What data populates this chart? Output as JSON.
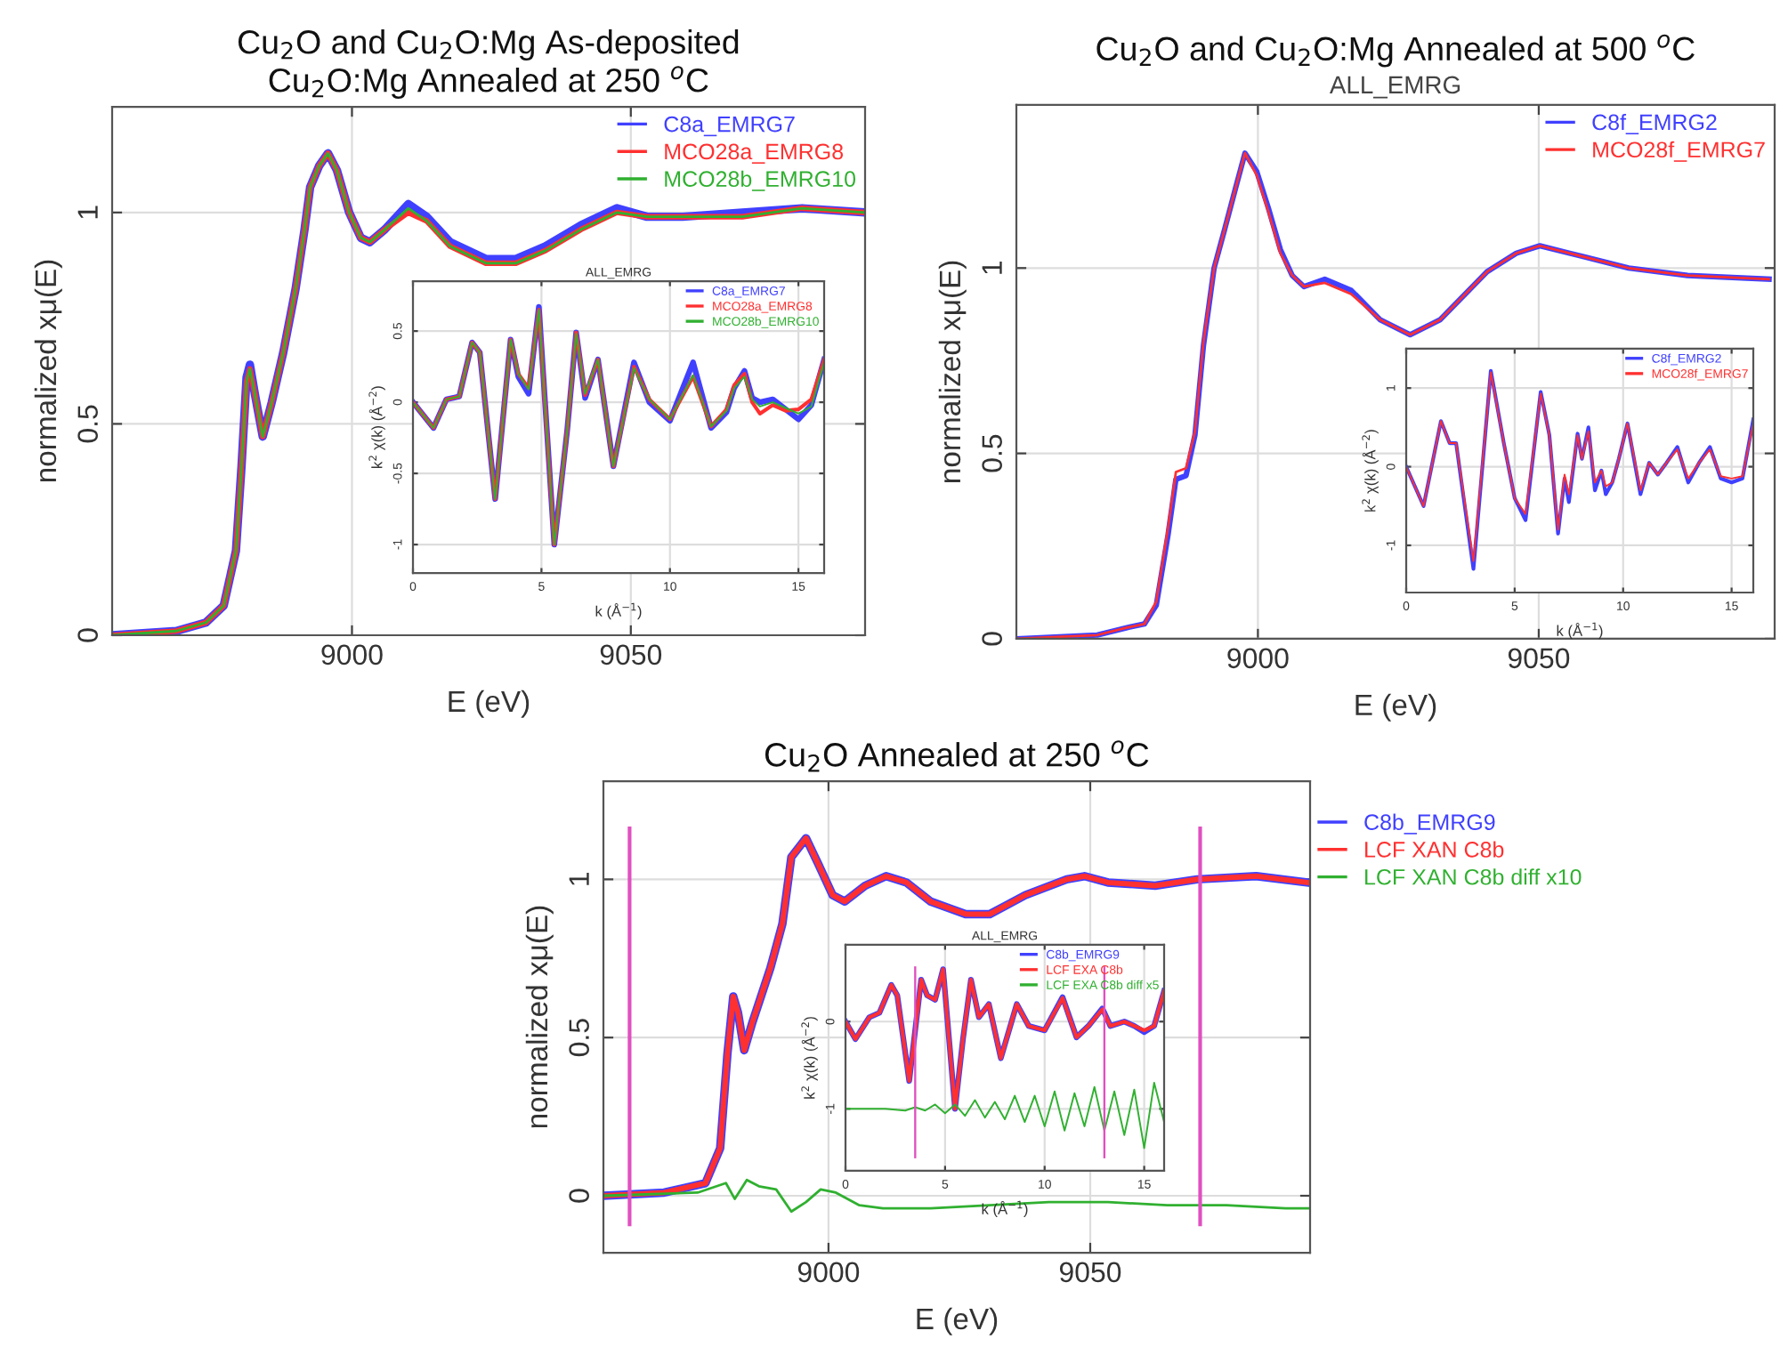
{
  "chart_data": [
    {
      "type": "line",
      "title": "Cu$_{2}$O and Cu$_{2}$O:Mg As-deposited\nCu$_{2}$O:Mg Annealed at 250 $^{o}$C",
      "xlabel": "E (eV)",
      "ylabel": "normalized xμ(E)",
      "xlim": [
        8957,
        9092
      ],
      "ylim": [
        0,
        1.25
      ],
      "xticks": [
        9000,
        9050
      ],
      "yticks": [
        0,
        0.5,
        1
      ],
      "grid": true,
      "legend": "top right",
      "x": [
        8957,
        8968.5,
        8973.8,
        8977,
        8979.2,
        8980.2,
        8981.1,
        8981.7,
        8982.6,
        8984,
        8985.6,
        8987.7,
        8989.9,
        8991.5,
        8992.5,
        8994.1,
        8995.7,
        8997.3,
        8999.5,
        9001.6,
        9003.2,
        9005.9,
        9010.1,
        9013.4,
        9017.6,
        9024,
        9029.4,
        9034.7,
        9041.1,
        9047.5,
        9052.9,
        9059.3,
        9070,
        9080.7,
        9092
      ],
      "series": [
        {
          "name": "C8a_EMRG7",
          "color": "#4040ff",
          "values": [
            0,
            0.01,
            0.03,
            0.07,
            0.2,
            0.4,
            0.61,
            0.64,
            0.57,
            0.47,
            0.55,
            0.67,
            0.82,
            0.96,
            1.06,
            1.11,
            1.14,
            1.1,
            1.0,
            0.94,
            0.93,
            0.96,
            1.02,
            0.99,
            0.93,
            0.89,
            0.89,
            0.92,
            0.97,
            1.01,
            0.99,
            0.99,
            1.0,
            1.01,
            1.0
          ]
        },
        {
          "name": "MCO28a_EMRG8",
          "color": "#ff3030",
          "values": [
            0,
            0.01,
            0.03,
            0.07,
            0.2,
            0.4,
            0.6,
            0.63,
            0.57,
            0.47,
            0.55,
            0.67,
            0.82,
            0.96,
            1.06,
            1.11,
            1.14,
            1.1,
            1.0,
            0.94,
            0.93,
            0.96,
            1.0,
            0.98,
            0.92,
            0.88,
            0.88,
            0.91,
            0.96,
            1.0,
            0.99,
            0.99,
            0.99,
            1.01,
            1.0
          ]
        },
        {
          "name": "MCO28b_EMRG10",
          "color": "#30b030",
          "values": [
            0,
            0.01,
            0.03,
            0.07,
            0.2,
            0.4,
            0.6,
            0.63,
            0.57,
            0.47,
            0.55,
            0.67,
            0.82,
            0.96,
            1.06,
            1.11,
            1.14,
            1.1,
            1.0,
            0.94,
            0.93,
            0.96,
            1.01,
            0.98,
            0.92,
            0.88,
            0.88,
            0.91,
            0.96,
            1.0,
            0.99,
            0.99,
            0.99,
            1.01,
            1.0
          ]
        }
      ]
    },
    {
      "type": "line",
      "title": "ALL_EMRG",
      "xlabel": "k (Å$^{−1}$)",
      "ylabel": "k$^{2}$ χ(k) (Å$^{−2}$)",
      "xlim": [
        0,
        16
      ],
      "ylim": [
        -1.2,
        0.85
      ],
      "xticks": [
        0,
        5,
        10,
        15
      ],
      "yticks": [
        -1,
        -0.5,
        0,
        0.5
      ],
      "grid": true,
      "legend": "top right",
      "x": [
        0,
        0.8,
        1.3,
        1.8,
        2.3,
        2.6,
        3.2,
        3.8,
        4.1,
        4.5,
        4.9,
        5.5,
        6.0,
        6.35,
        6.7,
        7.2,
        7.8,
        8.6,
        9.2,
        10.0,
        10.9,
        11.6,
        12.2,
        12.5,
        12.9,
        13.2,
        13.5,
        14.0,
        14.5,
        15.0,
        15.5,
        16
      ],
      "series": [
        {
          "name": "C8a_EMRG7",
          "color": "#4040ff",
          "values": [
            0,
            -0.18,
            0.02,
            0.04,
            0.42,
            0.35,
            -0.68,
            0.44,
            0.18,
            0.06,
            0.67,
            -1.0,
            -0.2,
            0.49,
            0.03,
            0.3,
            -0.45,
            0.28,
            0.0,
            -0.13,
            0.28,
            -0.18,
            -0.07,
            0.1,
            0.22,
            0.03,
            0.0,
            0.02,
            -0.05,
            -0.12,
            -0.02,
            0.3
          ]
        },
        {
          "name": "MCO28a_EMRG8",
          "color": "#ff3030",
          "values": [
            0,
            -0.18,
            0.02,
            0.04,
            0.42,
            0.35,
            -0.68,
            0.44,
            0.2,
            0.1,
            0.65,
            -1.0,
            -0.2,
            0.49,
            0.05,
            0.3,
            -0.45,
            0.25,
            0.02,
            -0.12,
            0.18,
            -0.17,
            -0.05,
            0.12,
            0.2,
            0.0,
            -0.08,
            -0.02,
            -0.06,
            -0.05,
            0.02,
            0.3
          ]
        },
        {
          "name": "MCO28b_EMRG10",
          "color": "#30b030",
          "values": [
            0,
            -0.18,
            0.02,
            0.04,
            0.42,
            0.35,
            -0.68,
            0.44,
            0.2,
            0.09,
            0.65,
            -1.0,
            -0.2,
            0.48,
            0.06,
            0.3,
            -0.45,
            0.24,
            0.02,
            -0.12,
            0.19,
            -0.17,
            -0.06,
            0.1,
            0.18,
            0.02,
            -0.03,
            0.0,
            -0.04,
            -0.08,
            -0.03,
            0.28
          ]
        }
      ]
    },
    {
      "type": "line",
      "title": "Cu$_{2}$O and Cu$_{2}$O:Mg Annealed at 500 $^{o}$C",
      "subtitle": "ALL_EMRG",
      "xlabel": "E (eV)",
      "ylabel": "normalized xμ(E)",
      "xlim": [
        8957,
        9092
      ],
      "ylim": [
        0,
        1.44
      ],
      "xticks": [
        9000,
        9050
      ],
      "yticks": [
        0,
        0.5,
        1
      ],
      "grid": true,
      "legend": "top right",
      "x": [
        8957,
        8971.4,
        8976.7,
        8979.8,
        8981.9,
        8984,
        8985.4,
        8987.2,
        8988.8,
        8990.3,
        8992.2,
        8994,
        8996.1,
        8997.7,
        8999.8,
        9001.9,
        9004,
        9006.1,
        9008.2,
        9011.9,
        9016.6,
        9021.8,
        9027.1,
        9032.4,
        9040.8,
        9046,
        9050.2,
        9055.5,
        9066,
        9076.5,
        9091
      ],
      "series": [
        {
          "name": "C8f_EMRG2",
          "color": "#4040ff",
          "values": [
            0,
            0.01,
            0.03,
            0.04,
            0.09,
            0.28,
            0.43,
            0.44,
            0.55,
            0.79,
            1.0,
            1.1,
            1.22,
            1.31,
            1.26,
            1.16,
            1.05,
            0.98,
            0.95,
            0.97,
            0.94,
            0.86,
            0.82,
            0.86,
            0.99,
            1.04,
            1.06,
            1.04,
            1.0,
            0.98,
            0.97
          ]
        },
        {
          "name": "MCO28f_EMRG7",
          "color": "#ff3030",
          "values": [
            0,
            0.01,
            0.03,
            0.04,
            0.1,
            0.3,
            0.45,
            0.46,
            0.56,
            0.8,
            1.0,
            1.1,
            1.22,
            1.31,
            1.25,
            1.15,
            1.04,
            0.98,
            0.95,
            0.96,
            0.93,
            0.86,
            0.82,
            0.86,
            0.99,
            1.04,
            1.06,
            1.04,
            1.0,
            0.98,
            0.97
          ]
        }
      ]
    },
    {
      "type": "line",
      "xlabel": "k (Å$^{−1}$)",
      "ylabel": "k$^{2}$ χ(k) (Å$^{−2}$)",
      "xlim": [
        0,
        16
      ],
      "ylim": [
        -1.6,
        1.5
      ],
      "xticks": [
        0,
        5,
        10,
        15
      ],
      "yticks": [
        -1,
        0,
        1
      ],
      "grid": true,
      "legend": "top right",
      "x": [
        0,
        0.8,
        1.6,
        2.0,
        2.3,
        3.1,
        3.9,
        4.5,
        5.0,
        5.5,
        6.2,
        6.6,
        7.0,
        7.3,
        7.5,
        7.9,
        8.1,
        8.4,
        8.7,
        9.0,
        9.2,
        9.5,
        9.8,
        10.2,
        10.8,
        11.2,
        11.6,
        12.0,
        12.5,
        13.0,
        13.5,
        14.0,
        14.5,
        15.0,
        15.5,
        16
      ],
      "series": [
        {
          "name": "C8f_EMRG2",
          "color": "#4040ff",
          "values": [
            0,
            -0.5,
            0.58,
            0.3,
            0.3,
            -1.3,
            1.22,
            0.3,
            -0.4,
            -0.68,
            0.95,
            0.4,
            -0.85,
            -0.15,
            -0.45,
            0.42,
            0.1,
            0.5,
            -0.3,
            -0.05,
            -0.35,
            -0.2,
            0.1,
            0.55,
            -0.35,
            0.05,
            -0.1,
            0.05,
            0.25,
            -0.2,
            0.05,
            0.25,
            -0.15,
            -0.2,
            -0.15,
            0.6
          ]
        },
        {
          "name": "MCO28f_EMRG7",
          "color": "#ff3030",
          "values": [
            0,
            -0.5,
            0.58,
            0.3,
            0.3,
            -1.2,
            1.2,
            0.3,
            -0.4,
            -0.6,
            0.93,
            0.4,
            -0.8,
            -0.1,
            -0.35,
            0.4,
            0.1,
            0.45,
            -0.2,
            -0.05,
            -0.25,
            -0.2,
            0.1,
            0.55,
            -0.3,
            0.05,
            -0.1,
            0.05,
            0.22,
            -0.15,
            0.05,
            0.22,
            -0.12,
            -0.15,
            -0.12,
            0.55
          ]
        }
      ]
    },
    {
      "type": "line",
      "title": "Cu$_{2}$O Annealed at 250 $^{o}$C",
      "xlabel": "E (eV)",
      "ylabel": "normalized xμ(E)",
      "xlim": [
        8957,
        9092
      ],
      "ylim": [
        -0.18,
        1.31
      ],
      "xticks": [
        9000,
        9050
      ],
      "yticks": [
        0,
        0.5,
        1
      ],
      "grid": true,
      "legend": "right",
      "ref_lines": [
        {
          "axis": "x",
          "value": 8962,
          "color": "#e050c0"
        },
        {
          "axis": "x",
          "value": 9071,
          "color": "#e050c0"
        }
      ],
      "x": [
        8957,
        8968.6,
        8976.5,
        8979.3,
        8980.7,
        8981.8,
        8982.7,
        8983.9,
        8985.5,
        8988.9,
        8991.2,
        8992.9,
        8995.7,
        8998,
        9000.8,
        9003.1,
        9007,
        9011,
        9014.9,
        9019.5,
        9026.2,
        9030.8,
        9037.6,
        9045.5,
        9048.9,
        9053.4,
        9062.4,
        9070.4,
        9081.7,
        9091.6
      ],
      "series": [
        {
          "name": "C8b_EMRG9",
          "color": "#4040ff",
          "values": [
            0,
            0.01,
            0.04,
            0.15,
            0.45,
            0.63,
            0.58,
            0.46,
            0.55,
            0.72,
            0.86,
            1.07,
            1.13,
            1.05,
            0.95,
            0.93,
            0.98,
            1.01,
            0.99,
            0.93,
            0.89,
            0.89,
            0.95,
            1.0,
            1.01,
            0.99,
            0.98,
            1.0,
            1.01,
            0.99
          ]
        },
        {
          "name": "LCF XAN C8b",
          "color": "#ff3030",
          "values": [
            0,
            0.01,
            0.04,
            0.15,
            0.45,
            0.63,
            0.58,
            0.46,
            0.55,
            0.72,
            0.86,
            1.07,
            1.13,
            1.05,
            0.95,
            0.93,
            0.98,
            1.01,
            0.99,
            0.93,
            0.89,
            0.89,
            0.95,
            1.0,
            1.01,
            0.99,
            0.98,
            1.0,
            1.01,
            0.99
          ]
        },
        {
          "name": "LCF XAN C8b diff x10",
          "color": "#30b030",
          "x": [
            8957,
            8975,
            8980.4,
            8982.1,
            8984.4,
            8986.7,
            8990,
            8992.9,
            8995.7,
            8998.5,
            9001.4,
            9005.9,
            9010.4,
            9019.5,
            9030.8,
            9042.1,
            9053.4,
            9064.7,
            9076,
            9087.3,
            9091.6
          ],
          "values": [
            0,
            0.01,
            0.04,
            -0.01,
            0.05,
            0.03,
            0.02,
            -0.05,
            -0.02,
            0.02,
            0.01,
            -0.03,
            -0.04,
            -0.04,
            -0.03,
            -0.02,
            -0.02,
            -0.03,
            -0.03,
            -0.04,
            -0.04
          ]
        }
      ]
    },
    {
      "type": "line",
      "title": "ALL_EMRG",
      "xlabel": "k (Å$^{−1}$)",
      "ylabel": "k$^{2}$ χ(k) (Å$^{−2}$)",
      "xlim": [
        0,
        16
      ],
      "ylim": [
        -1.71,
        0.88
      ],
      "xticks": [
        0,
        5,
        10,
        15
      ],
      "yticks": [
        -1,
        0
      ],
      "grid": true,
      "legend": "top right",
      "ref_lines": [
        {
          "axis": "x",
          "value": 3.5,
          "color": "#e050c0"
        },
        {
          "axis": "x",
          "value": 13.0,
          "color": "#e050c0"
        }
      ],
      "x": [
        0,
        0.5,
        1.2,
        1.7,
        2.3,
        2.6,
        3.2,
        3.8,
        4.1,
        4.5,
        4.9,
        5.5,
        5.9,
        6.3,
        6.7,
        7.2,
        7.8,
        8.6,
        9.2,
        10.0,
        10.9,
        11.6,
        12.2,
        12.9,
        13.3,
        14,
        14.5,
        15.0,
        15.5,
        16
      ],
      "series": [
        {
          "name": "C8b_EMRG9",
          "color": "#4040ff",
          "values": [
            0,
            -0.2,
            0.05,
            0.1,
            0.42,
            0.3,
            -0.68,
            0.48,
            0.3,
            0.25,
            0.6,
            -1.0,
            -0.2,
            0.48,
            0.05,
            0.2,
            -0.42,
            0.2,
            -0.05,
            -0.1,
            0.28,
            -0.18,
            -0.05,
            0.15,
            -0.05,
            0.0,
            -0.05,
            -0.12,
            -0.05,
            0.35
          ]
        },
        {
          "name": "LCF EXA C8b",
          "color": "#ff3030",
          "values": [
            0,
            -0.2,
            0.05,
            0.1,
            0.42,
            0.3,
            -0.68,
            0.48,
            0.3,
            0.25,
            0.6,
            -1.0,
            -0.2,
            0.48,
            0.05,
            0.2,
            -0.42,
            0.2,
            -0.05,
            -0.1,
            0.27,
            -0.18,
            -0.05,
            0.14,
            -0.05,
            0.0,
            -0.05,
            -0.1,
            -0.05,
            0.35
          ]
        },
        {
          "name": "LCF EXA C8b diff x5",
          "color": "#30b030",
          "x": [
            0,
            1,
            2,
            3,
            3.5,
            4,
            4.5,
            5,
            5.5,
            6,
            6.5,
            7,
            7.5,
            8,
            8.5,
            9,
            9.5,
            10,
            10.5,
            11,
            11.5,
            12,
            12.5,
            13,
            13.5,
            14,
            14.5,
            15,
            15.5,
            16
          ],
          "values": [
            -1.0,
            -1.0,
            -1.0,
            -1.02,
            -0.98,
            -1.02,
            -0.95,
            -1.05,
            -0.95,
            -1.08,
            -0.9,
            -1.1,
            -0.92,
            -1.12,
            -0.85,
            -1.15,
            -0.85,
            -1.2,
            -0.8,
            -1.25,
            -0.82,
            -1.2,
            -0.75,
            -1.25,
            -0.8,
            -1.3,
            -0.78,
            -1.45,
            -0.7,
            -1.15
          ]
        }
      ]
    }
  ]
}
